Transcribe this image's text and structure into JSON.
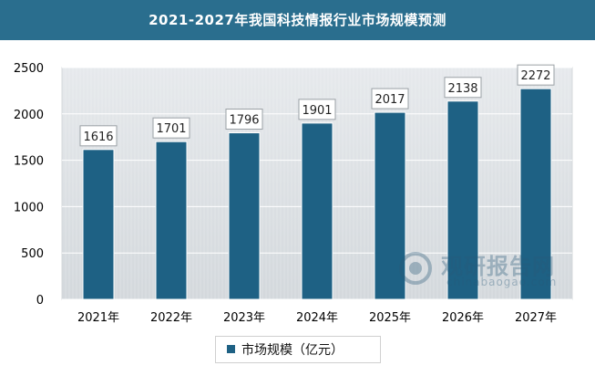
{
  "title": "2021-2027年我国科技情报行业市场规模预测",
  "colors": {
    "title_bg": "#2a6e8e",
    "bar": "#1e6184",
    "plot_bg": "#dfe3e6",
    "grid": "#ffffff"
  },
  "watermark": {
    "text": "观研报告网",
    "sub": "chinabaogao.com"
  },
  "chart_data": {
    "type": "bar",
    "categories": [
      "2021年",
      "2022年",
      "2023年",
      "2024年",
      "2025年",
      "2026年",
      "2027年"
    ],
    "series": [
      {
        "name": "市场规模（亿元）",
        "values": [
          1616,
          1701,
          1796,
          1901,
          2017,
          2138,
          2272
        ]
      }
    ],
    "ylim": [
      0,
      2500
    ],
    "yticks": [
      0,
      500,
      1000,
      1500,
      2000,
      2500
    ],
    "grid": true,
    "legend": "bottom",
    "data_labels": true
  }
}
